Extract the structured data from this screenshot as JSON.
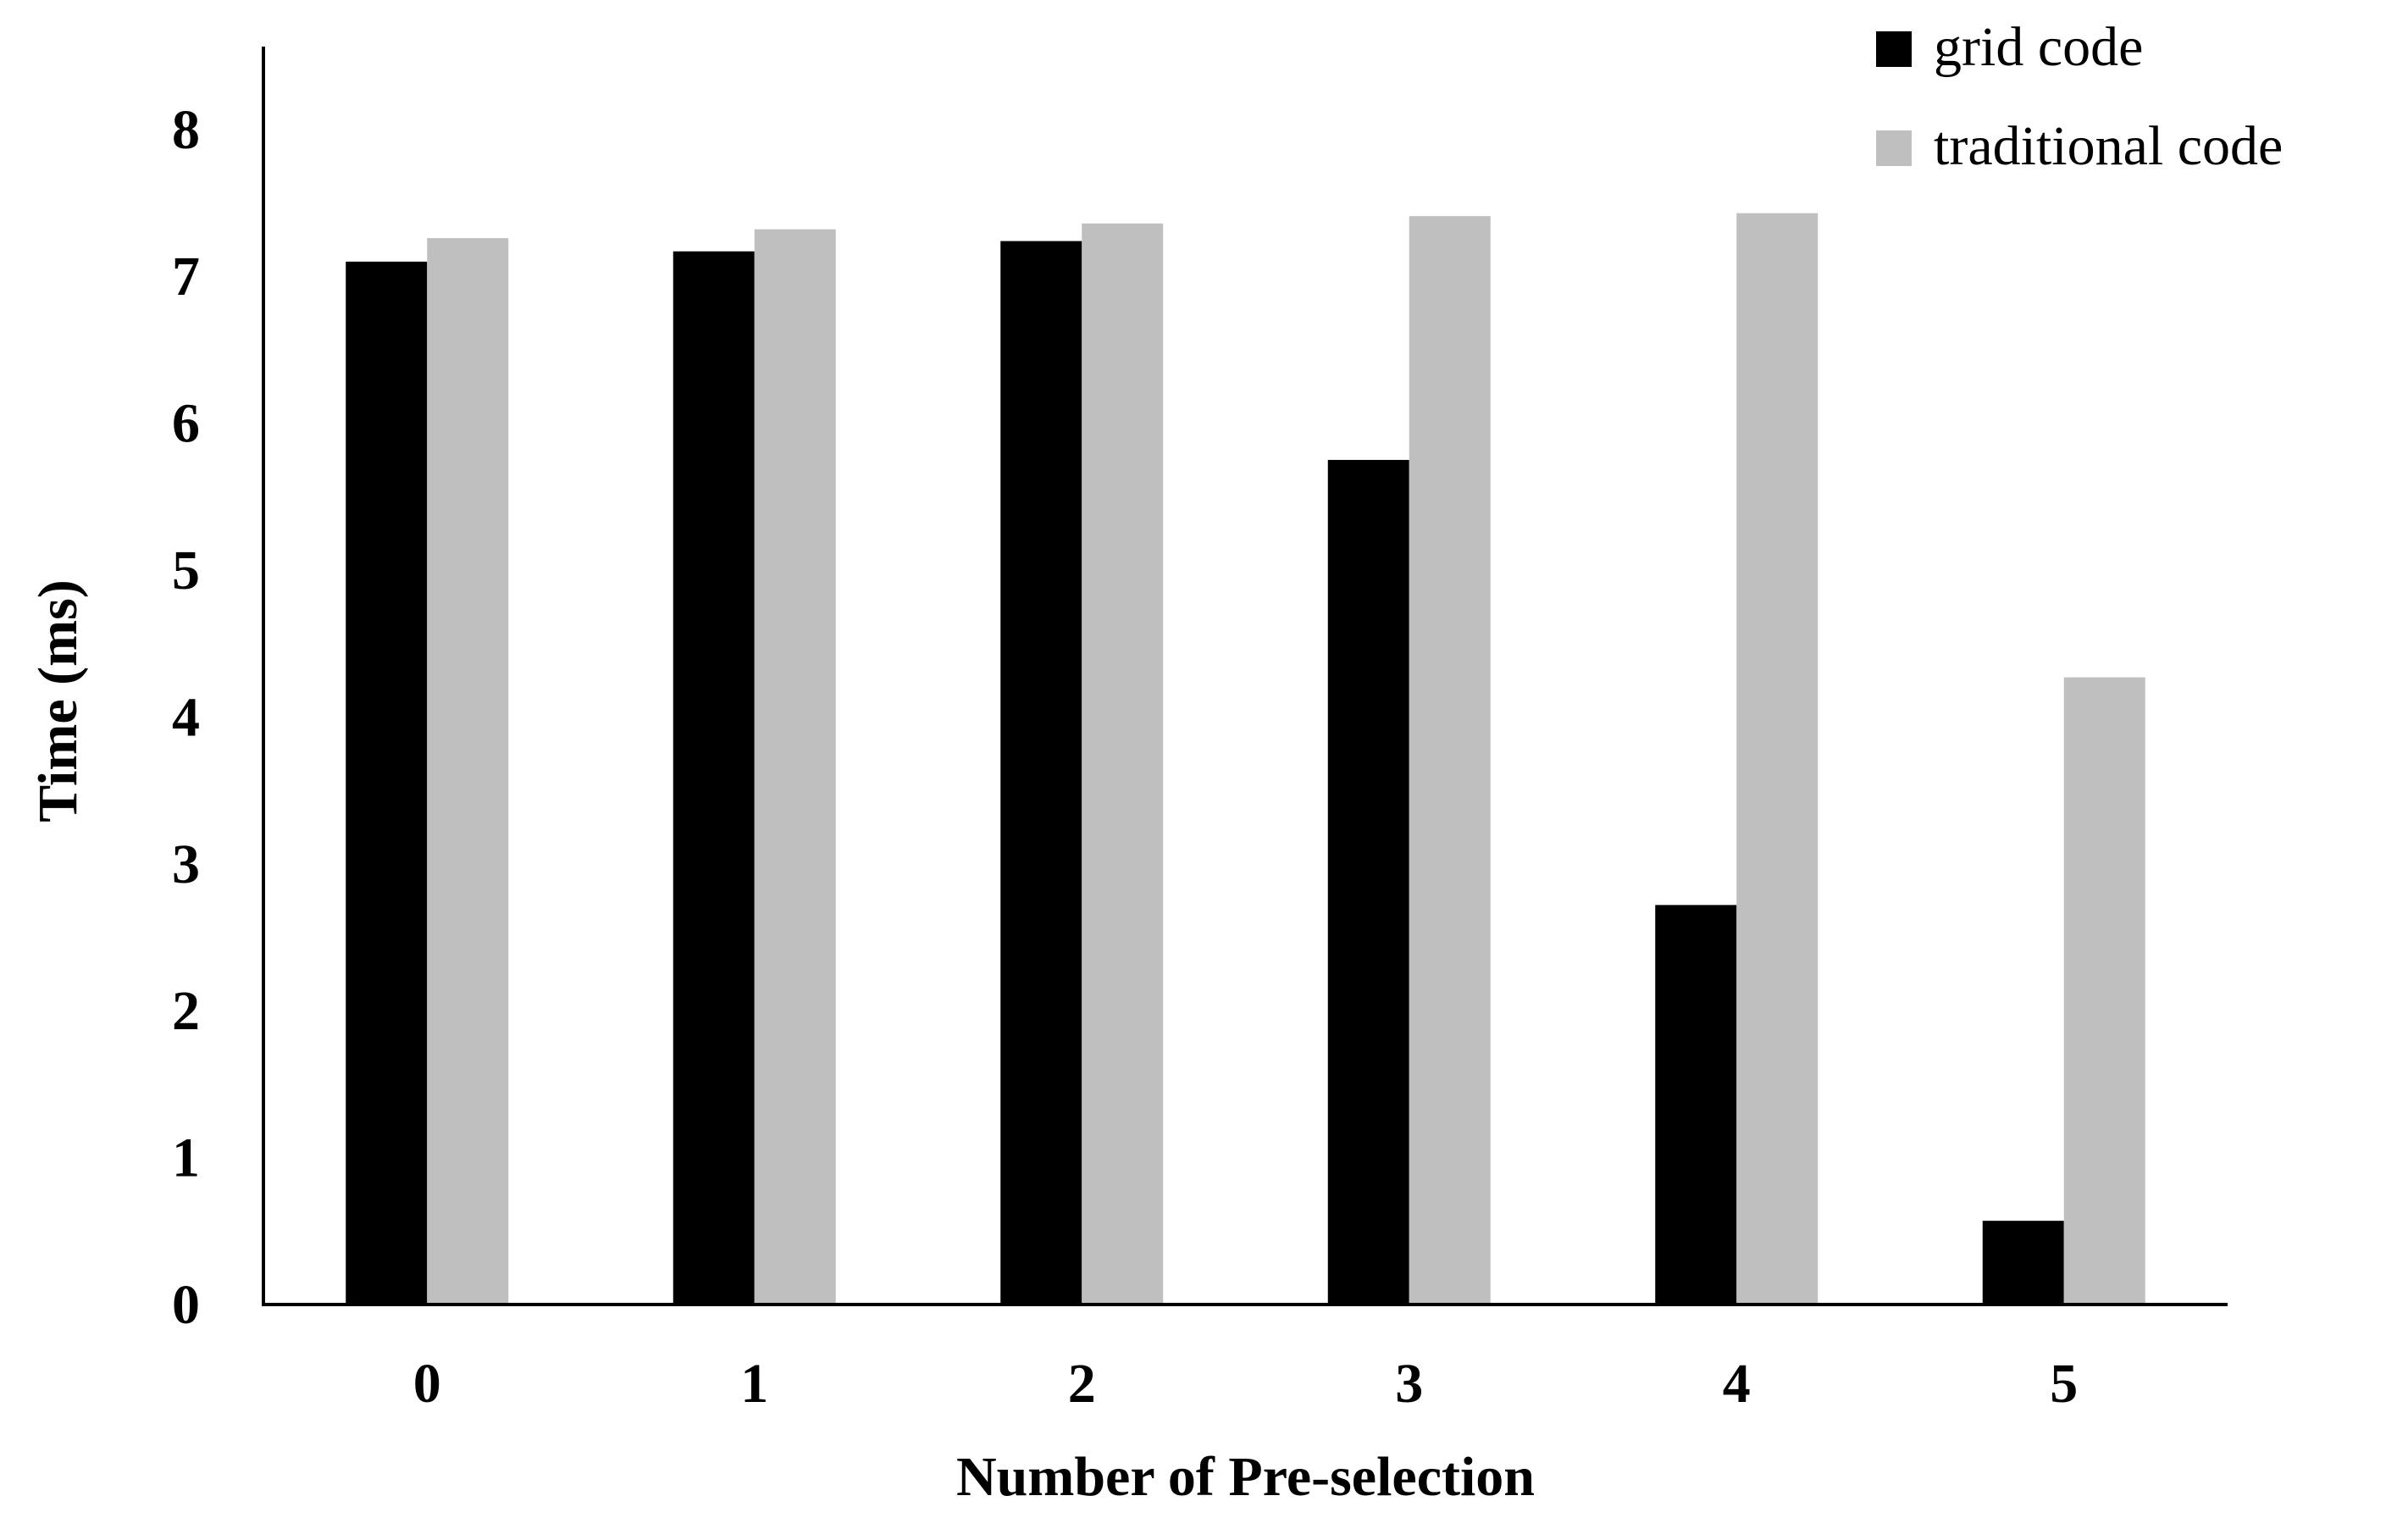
{
  "chart_data": {
    "type": "bar",
    "title": "",
    "xlabel": "Number of Pre-selection",
    "ylabel": "Time (ms)",
    "categories": [
      "0",
      "1",
      "2",
      "3",
      "4",
      "5"
    ],
    "ylim": [
      0,
      8.5
    ],
    "yticks": [
      0,
      1,
      2,
      3,
      4,
      5,
      6,
      7,
      8
    ],
    "grid": false,
    "legend_position": "top-right",
    "series": [
      {
        "name": "grid code",
        "color": "#000000",
        "values": [
          7.1,
          7.17,
          7.24,
          5.75,
          2.72,
          0.57
        ]
      },
      {
        "name": "traditional code",
        "color": "#bfbfbf",
        "values": [
          7.26,
          7.32,
          7.36,
          7.41,
          7.43,
          4.27
        ]
      }
    ]
  }
}
